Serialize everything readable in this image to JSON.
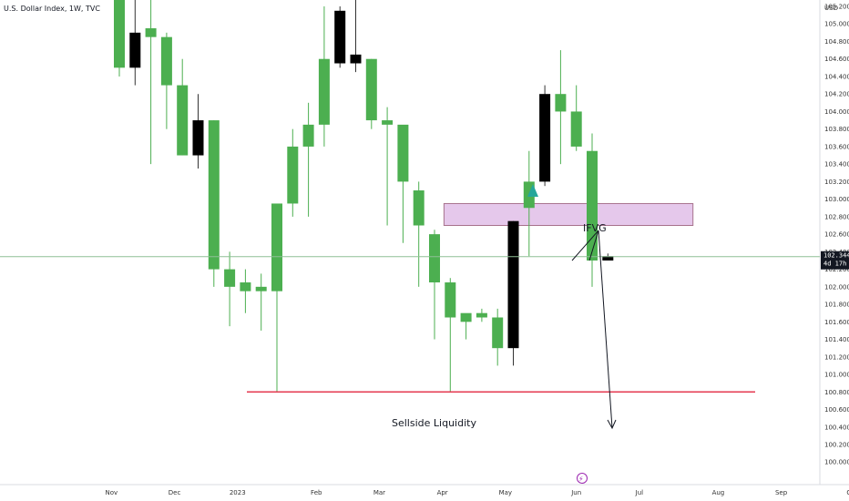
{
  "header": {
    "title": "U.S. Dollar Index, 1W, TVC",
    "currency": "USD"
  },
  "colors": {
    "up": "#4caf50",
    "down": "#000000",
    "liquidity": "#e53950",
    "zone_fill": "#e1bee7",
    "zone_border": "#a7728c",
    "arrow": "#26a69a",
    "price_line": "#8fbf95"
  },
  "chart_data": {
    "type": "candlestick",
    "title": "U.S. Dollar Index, 1W, TVC",
    "ylabel": "USD",
    "ylim": [
      99.95,
      105.2
    ],
    "yticks": [
      105.2,
      105.0,
      104.8,
      104.6,
      104.4,
      104.2,
      104.0,
      103.8,
      103.6,
      103.4,
      103.2,
      103.0,
      102.8,
      102.6,
      102.4,
      102.2,
      102.0,
      101.8,
      101.6,
      101.4,
      101.2,
      101.0,
      100.8,
      100.6,
      100.4,
      100.2,
      100.0
    ],
    "ytick_labels": [
      "105.200",
      "105.000",
      "104.800",
      "104.600",
      "104.400",
      "104.200",
      "104.000",
      "103.800",
      "103.600",
      "103.400",
      "103.200",
      "103.000",
      "102.800",
      "102.600",
      "102.400",
      "102.200",
      "102.000",
      "101.800",
      "101.600",
      "101.400",
      "101.200",
      "101.000",
      "100.800",
      "100.600",
      "100.400",
      "100.200",
      "100.000"
    ],
    "xlabels": [
      {
        "label": "Nov",
        "week": -0.5
      },
      {
        "label": "Dec",
        "week": 3.5
      },
      {
        "label": "2023",
        "week": 7.5
      },
      {
        "label": "Feb",
        "week": 12.5
      },
      {
        "label": "Mar",
        "week": 16.5
      },
      {
        "label": "Apr",
        "week": 20.5
      },
      {
        "label": "May",
        "week": 24.5
      },
      {
        "label": "Jun",
        "week": 29
      },
      {
        "label": "Jul",
        "week": 33
      },
      {
        "label": "Aug",
        "week": 38
      },
      {
        "label": "Sep",
        "week": 42
      },
      {
        "label": "Oct",
        "week": 46.5
      }
    ],
    "candles": [
      {
        "o": 104.5,
        "h": 105.6,
        "l": 104.4,
        "c": 105.6
      },
      {
        "o": 104.9,
        "h": 105.3,
        "l": 104.3,
        "c": 104.5
      },
      {
        "o": 104.85,
        "h": 105.6,
        "l": 103.4,
        "c": 104.95
      },
      {
        "o": 104.3,
        "h": 104.9,
        "l": 103.8,
        "c": 104.85
      },
      {
        "o": 103.5,
        "h": 104.6,
        "l": 103.5,
        "c": 104.3
      },
      {
        "o": 103.9,
        "h": 104.2,
        "l": 103.35,
        "c": 103.5
      },
      {
        "o": 102.2,
        "h": 103.9,
        "l": 102.0,
        "c": 103.9
      },
      {
        "o": 102.0,
        "h": 102.4,
        "l": 101.55,
        "c": 102.2
      },
      {
        "o": 101.95,
        "h": 102.2,
        "l": 101.7,
        "c": 102.05
      },
      {
        "o": 101.95,
        "h": 102.15,
        "l": 101.5,
        "c": 102.0
      },
      {
        "o": 101.95,
        "h": 102.95,
        "l": 100.8,
        "c": 102.95
      },
      {
        "o": 102.95,
        "h": 103.8,
        "l": 102.8,
        "c": 103.6
      },
      {
        "o": 103.6,
        "h": 104.1,
        "l": 102.8,
        "c": 103.85
      },
      {
        "o": 103.85,
        "h": 105.2,
        "l": 103.6,
        "c": 104.6
      },
      {
        "o": 105.15,
        "h": 105.2,
        "l": 104.5,
        "c": 104.55
      },
      {
        "o": 104.65,
        "h": 105.3,
        "l": 104.45,
        "c": 104.55
      },
      {
        "o": 103.9,
        "h": 104.6,
        "l": 103.8,
        "c": 104.6
      },
      {
        "o": 103.85,
        "h": 104.05,
        "l": 102.7,
        "c": 103.9
      },
      {
        "o": 103.2,
        "h": 103.8,
        "l": 102.5,
        "c": 103.85
      },
      {
        "o": 102.7,
        "h": 103.2,
        "l": 102.0,
        "c": 103.1
      },
      {
        "o": 102.05,
        "h": 102.65,
        "l": 101.4,
        "c": 102.6
      },
      {
        "o": 101.65,
        "h": 102.1,
        "l": 100.8,
        "c": 102.05
      },
      {
        "o": 101.6,
        "h": 101.65,
        "l": 101.4,
        "c": 101.7
      },
      {
        "o": 101.65,
        "h": 101.75,
        "l": 101.6,
        "c": 101.7
      },
      {
        "o": 101.3,
        "h": 101.75,
        "l": 101.1,
        "c": 101.65
      },
      {
        "o": 102.75,
        "h": 102.75,
        "l": 101.1,
        "c": 101.3
      },
      {
        "o": 102.9,
        "h": 103.55,
        "l": 102.35,
        "c": 103.2
      },
      {
        "o": 104.2,
        "h": 104.3,
        "l": 103.15,
        "c": 103.2
      },
      {
        "o": 104.0,
        "h": 104.7,
        "l": 103.4,
        "c": 104.2
      },
      {
        "o": 103.6,
        "h": 104.3,
        "l": 103.55,
        "c": 104.0
      },
      {
        "o": 102.3,
        "h": 103.75,
        "l": 102.0,
        "c": 103.55
      },
      {
        "o": 102.35,
        "h": 102.38,
        "l": 102.32,
        "c": 102.3
      }
    ],
    "current_price": 102.344,
    "current_price_label": "102.344",
    "countdown": "4d 17h",
    "liquidity_level": 100.8,
    "zone": {
      "label": "IFVG",
      "top": 102.95,
      "bottom": 102.7,
      "from_week": 20.6,
      "to_week": 36.4
    }
  },
  "annotations": {
    "zone_label": "IFVG",
    "liquidity_label": "Sellside Liquidity"
  },
  "footer": {
    "lightning": "⚡"
  }
}
